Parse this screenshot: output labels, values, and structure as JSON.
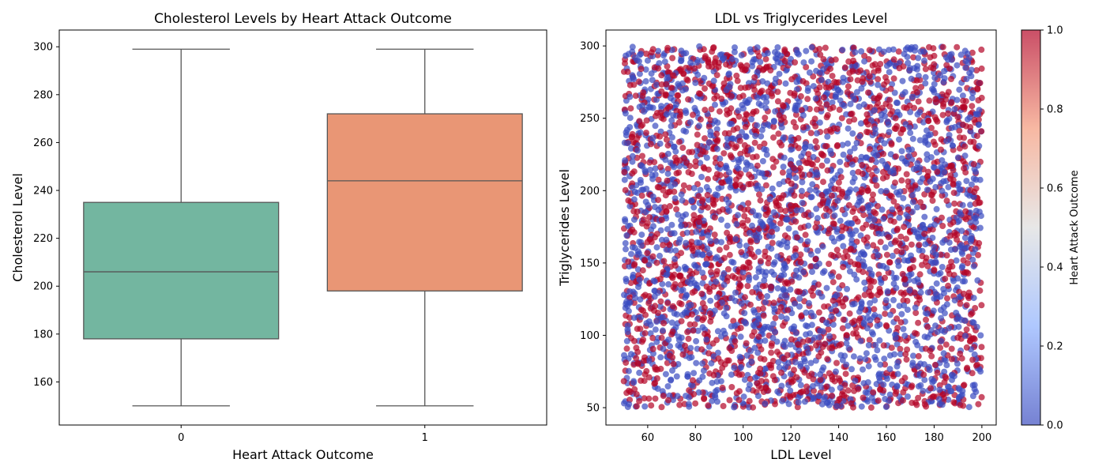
{
  "chart_data": [
    {
      "type": "box",
      "title": "Cholesterol Levels by Heart Attack Outcome",
      "xlabel": "Heart Attack Outcome",
      "ylabel": "Cholesterol Level",
      "categories": [
        "0",
        "1"
      ],
      "ylim": [
        142,
        307
      ],
      "yticks": [
        160,
        180,
        200,
        220,
        240,
        260,
        280,
        300
      ],
      "boxes": [
        {
          "category": "0",
          "min": 150,
          "q1": 178,
          "median": 206,
          "q3": 235,
          "max": 299,
          "color": "#73b6a0"
        },
        {
          "category": "1",
          "min": 150,
          "q1": 198,
          "median": 244,
          "q3": 272,
          "max": 299,
          "color": "#e99675"
        }
      ]
    },
    {
      "type": "scatter",
      "title": "LDL vs Triglycerides Level",
      "xlabel": "LDL Level",
      "ylabel": "Triglycerides Level",
      "xlim": [
        42.5,
        206
      ],
      "ylim": [
        38,
        311
      ],
      "xticks": [
        60,
        80,
        100,
        120,
        140,
        160,
        180,
        200
      ],
      "yticks": [
        50,
        100,
        150,
        200,
        250,
        300
      ],
      "x_range": [
        50,
        200
      ],
      "y_range": [
        50,
        300
      ],
      "color_by": "Heart Attack Outcome",
      "colormap": "coolwarm",
      "colors": {
        "outcome_0": "#3b4cc0",
        "outcome_1": "#b40426"
      },
      "colorbar": {
        "label": "Heart Attack Outcome",
        "range": [
          0,
          1
        ],
        "ticks": [
          "0.0",
          "0.2",
          "0.4",
          "0.6",
          "0.8",
          "1.0"
        ]
      }
    }
  ]
}
